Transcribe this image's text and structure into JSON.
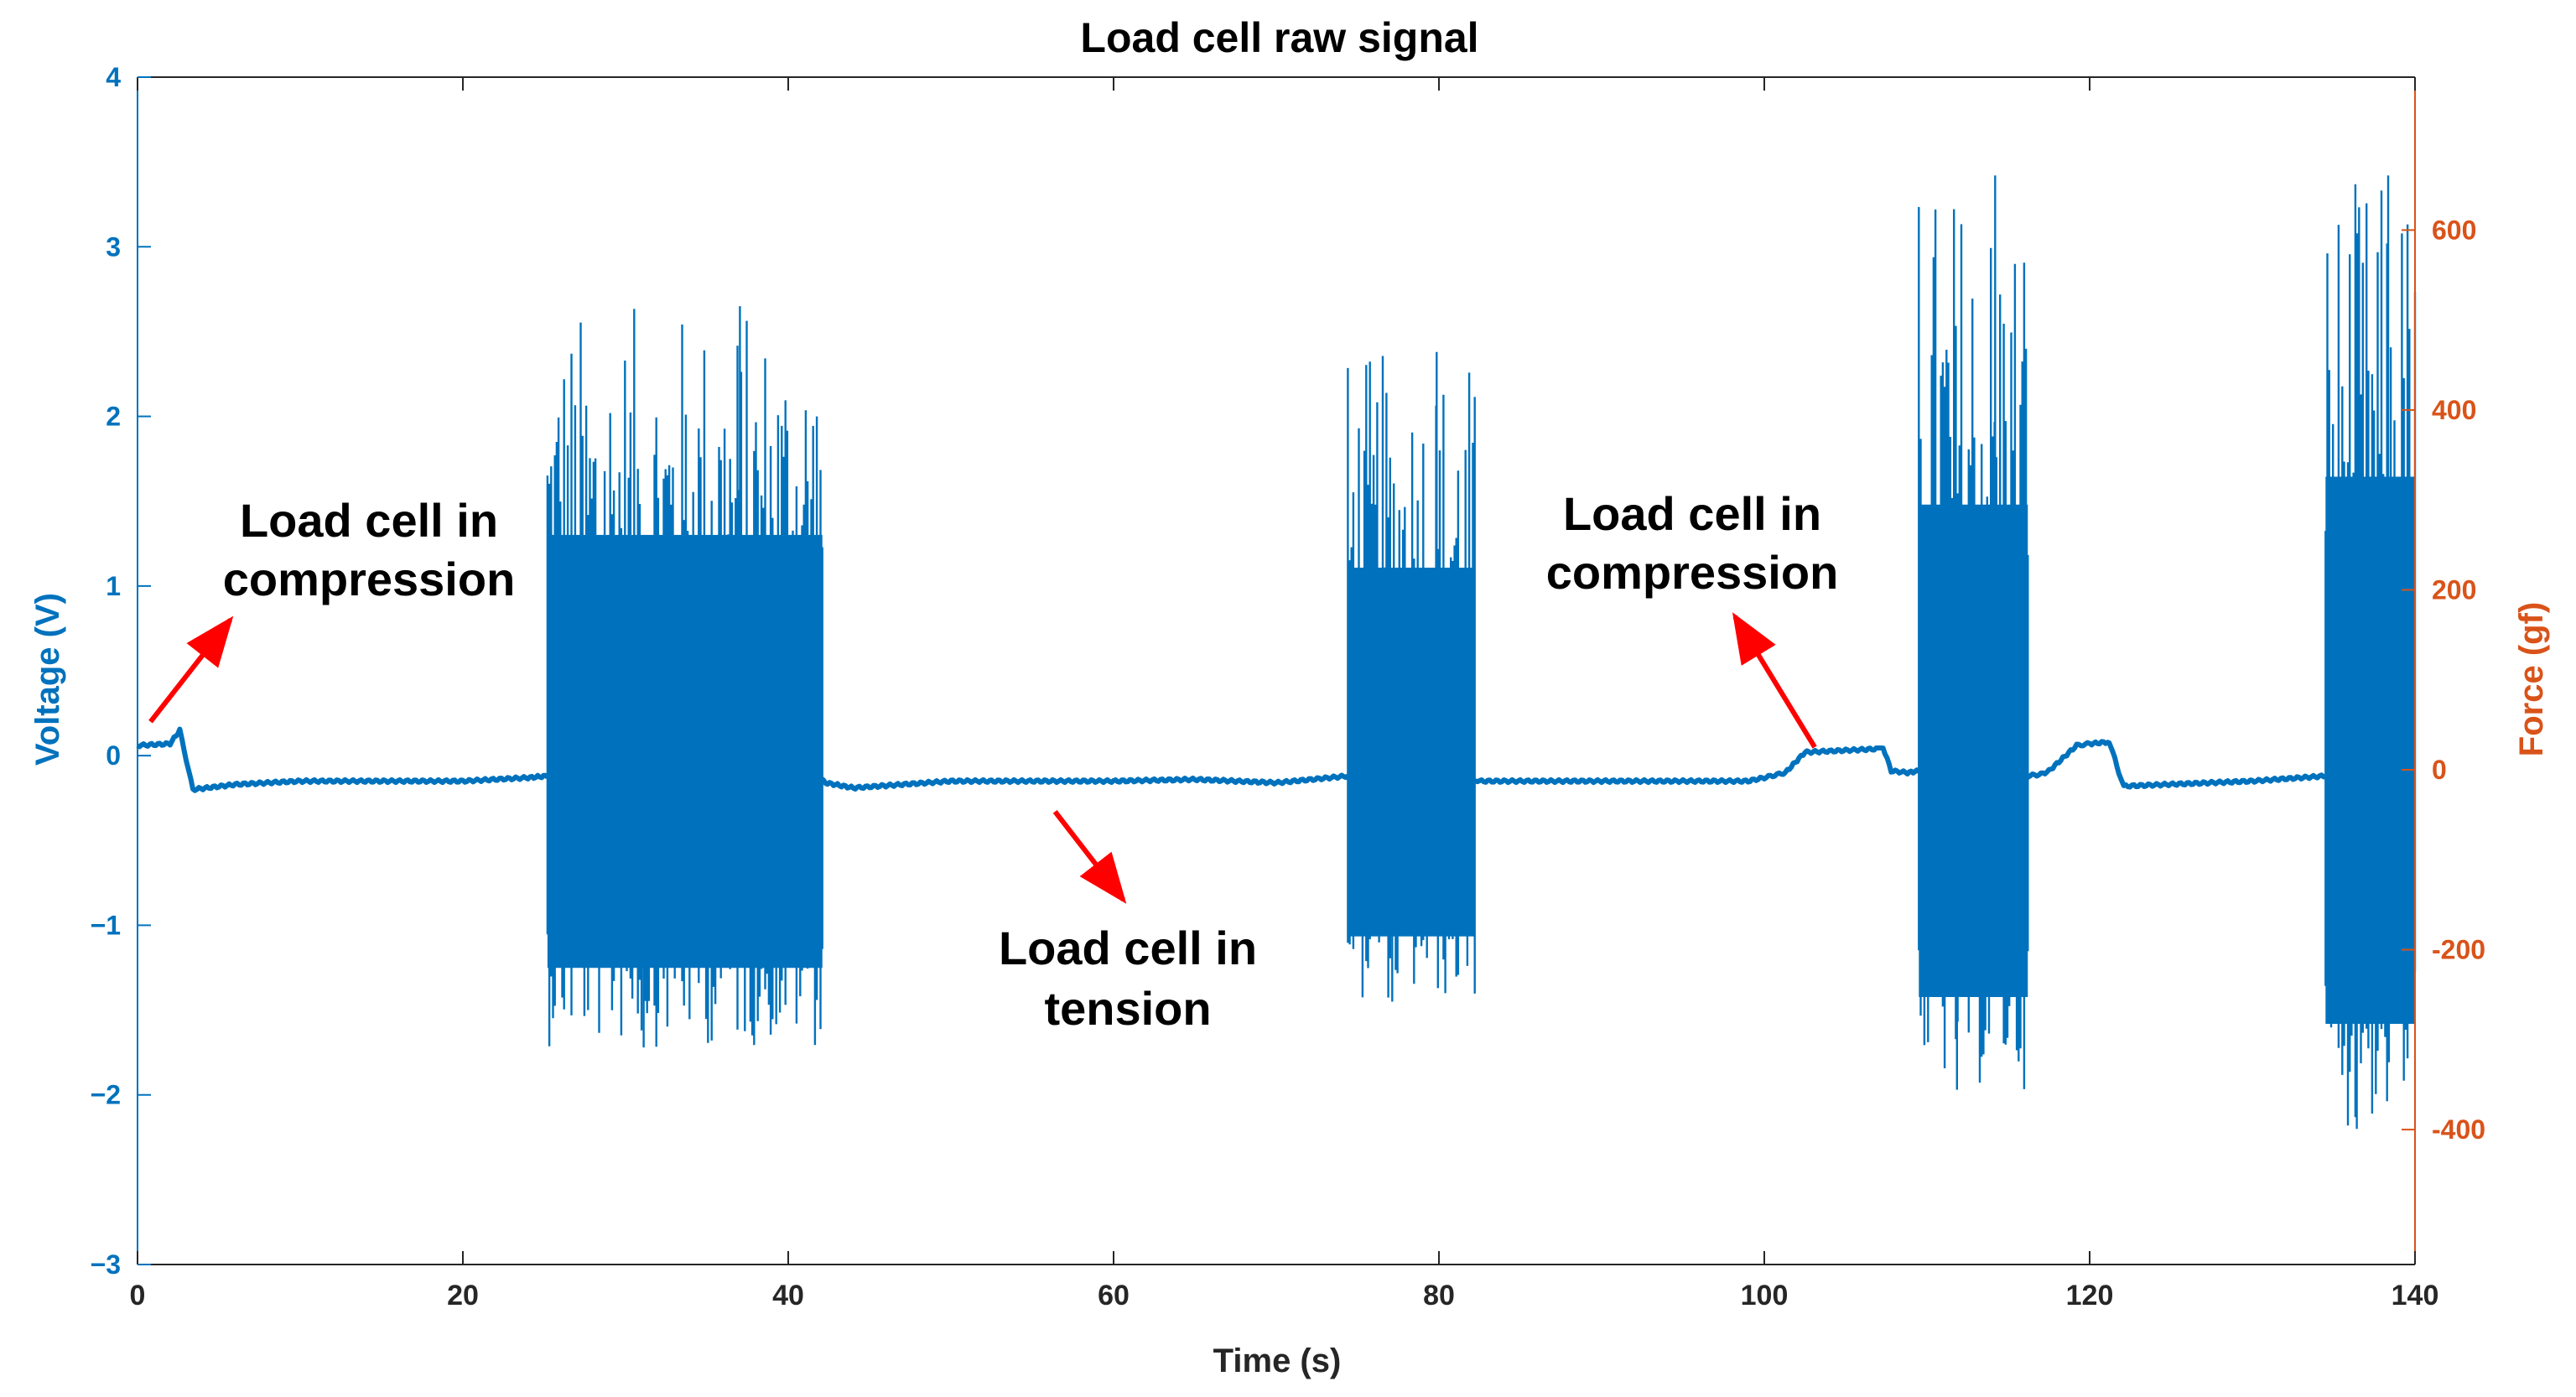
{
  "chart_data": {
    "type": "line",
    "title": "Load cell raw signal",
    "xlabel": "Time (s)",
    "ylabel_left": "Voltage (V)",
    "ylabel_right": "Force (gf)",
    "xlim": [
      0,
      140
    ],
    "ylim_left": [
      -3,
      4
    ],
    "ylim_right": [
      -550,
      770
    ],
    "xticks": [
      0,
      20,
      40,
      60,
      80,
      100,
      120,
      140
    ],
    "xtick_labels": [
      "0",
      "20",
      "40",
      "60",
      "80",
      "100",
      "120",
      "140"
    ],
    "yticks_left": [
      -3,
      -2,
      -1,
      0,
      1,
      2,
      3,
      4
    ],
    "ytick_labels_left": [
      "−3",
      "−2",
      "−1",
      "0",
      "1",
      "2",
      "3",
      "4"
    ],
    "yticks_right": [
      -400,
      -200,
      0,
      200,
      400,
      600
    ],
    "ytick_labels_right": [
      "-400",
      "-200",
      "0",
      "200",
      "400",
      "600"
    ],
    "colors": {
      "left_axis": "#0072BD",
      "right_axis": "#D95319",
      "series": "#0072BD",
      "arrow": "#FF0000",
      "box": "#262626"
    },
    "series": [
      {
        "name": "Voltage",
        "baseline_segments": [
          {
            "x": [
              0,
              2,
              2.6,
              3.4,
              6,
              10,
              15,
              20,
              24,
              25.2
            ],
            "y": [
              0.06,
              0.07,
              0.15,
              -0.2,
              -0.17,
              -0.15,
              -0.15,
              -0.15,
              -0.13,
              -0.12
            ]
          },
          {
            "x": [
              41.9,
              42.3,
              44,
              50,
              60,
              65,
              70,
              74.4
            ],
            "y": [
              -0.13,
              -0.16,
              -0.19,
              -0.15,
              -0.15,
              -0.14,
              -0.16,
              -0.12
            ]
          },
          {
            "x": [
              82.1,
              82.5,
              90,
              99,
              100,
              101.3,
              102.5,
              107,
              107.3,
              107.8,
              108.8,
              109.5
            ],
            "y": [
              -0.14,
              -0.15,
              -0.15,
              -0.15,
              -0.13,
              -0.1,
              0.02,
              0.04,
              0.05,
              -0.09,
              -0.1,
              -0.09
            ]
          },
          {
            "x": [
              116.1,
              117,
              117.5,
              119.2,
              120,
              121.1,
              121.3,
              121.8,
              122.1,
              130,
              134.5
            ],
            "y": [
              -0.12,
              -0.11,
              -0.09,
              0.06,
              0.07,
              0.08,
              0.06,
              -0.1,
              -0.18,
              -0.15,
              -0.12
            ]
          }
        ],
        "burst_segments": [
          {
            "x_range": [
              25.2,
              42.1
            ],
            "max_y": 2.65,
            "min_y": -1.72
          },
          {
            "x_range": [
              74.4,
              82.2
            ],
            "max_y": 2.38,
            "min_y": -1.45
          },
          {
            "x_range": [
              109.5,
              116.2
            ],
            "max_y": 3.42,
            "min_y": -1.97
          },
          {
            "x_range": [
              134.5,
              140
            ],
            "max_y": 3.42,
            "min_y": -2.2
          }
        ]
      }
    ],
    "annotations": [
      {
        "lines": [
          "Load cell in",
          "compression"
        ],
        "arrow_from": [
          0.8,
          0.2
        ],
        "arrow_to": [
          5.7,
          0.8
        ]
      },
      {
        "lines": [
          "Load cell in",
          "tension"
        ],
        "arrow_from": [
          56.4,
          -0.33
        ],
        "arrow_to": [
          60.6,
          -0.85
        ]
      },
      {
        "lines": [
          "Load cell in",
          "compression"
        ],
        "arrow_from": [
          103.1,
          0.05
        ],
        "arrow_to": [
          98.2,
          0.82
        ]
      }
    ]
  }
}
